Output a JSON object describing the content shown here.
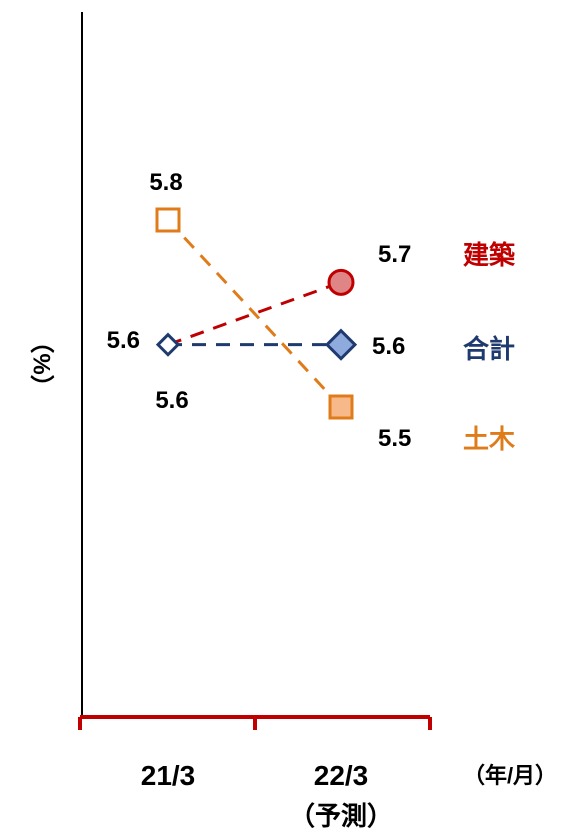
{
  "chart_data": {
    "type": "line",
    "categories": [
      "21/3",
      "22/3"
    ],
    "category_sublabels": [
      "",
      "（予測）"
    ],
    "xlabel": "（年/月）",
    "ylabel": "（%）",
    "ylim": [
      5.0,
      6.0
    ],
    "grid": false,
    "legend": "right end labels",
    "series": [
      {
        "name": "建築",
        "values": [
          5.6,
          5.7
        ],
        "color": "#c00000",
        "marker": "circle",
        "value_labels": [
          "",
          "5.7"
        ]
      },
      {
        "name": "合計",
        "values": [
          5.6,
          5.6
        ],
        "color": "#1f3a6e",
        "marker": "diamond",
        "value_labels": [
          "5.6",
          "5.6"
        ]
      },
      {
        "name": "土木",
        "values": [
          5.8,
          5.5
        ],
        "color": "#e07b1a",
        "marker": "square",
        "value_labels": [
          "5.8",
          "5.5"
        ]
      }
    ],
    "extra_labels": [
      "5.6"
    ],
    "axis_color": "#c00000"
  }
}
